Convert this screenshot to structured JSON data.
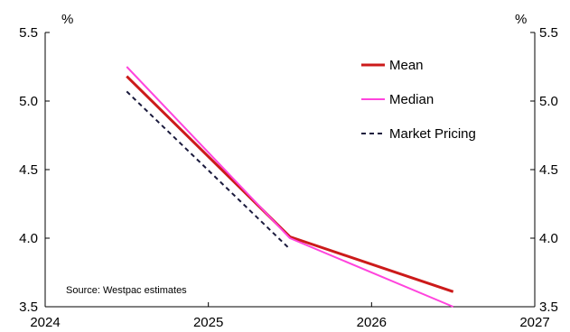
{
  "chart_data": {
    "type": "line",
    "title": "",
    "xlabel": "",
    "ylabel": "%",
    "ylabel_right": "%",
    "xlim": [
      2024,
      2027
    ],
    "ylim": [
      3.5,
      5.5
    ],
    "x_ticks": [
      2024,
      2025,
      2026,
      2027
    ],
    "y_ticks": [
      "3.5",
      "4.0",
      "4.5",
      "5.0",
      "5.5"
    ],
    "y_tick_values": [
      3.5,
      4.0,
      4.5,
      5.0,
      5.5
    ],
    "grid": false,
    "legend_position": "top-right",
    "series": [
      {
        "name": "Mean",
        "color": "#cc1a1a",
        "style": "solid",
        "points": [
          [
            2024.5,
            5.18
          ],
          [
            2025.5,
            4.01
          ],
          [
            2026.5,
            3.61
          ]
        ]
      },
      {
        "name": "Median",
        "color": "#ff44dd",
        "style": "solid",
        "points": [
          [
            2024.5,
            5.25
          ],
          [
            2025.5,
            4.0
          ],
          [
            2026.5,
            3.5
          ]
        ]
      },
      {
        "name": "Market Pricing",
        "color": "#1a1a3d",
        "style": "dashed",
        "points": [
          [
            2024.5,
            5.07
          ],
          [
            2025.5,
            3.92
          ]
        ]
      }
    ],
    "annotations": {
      "source": "Source: Westpac estimates"
    }
  }
}
